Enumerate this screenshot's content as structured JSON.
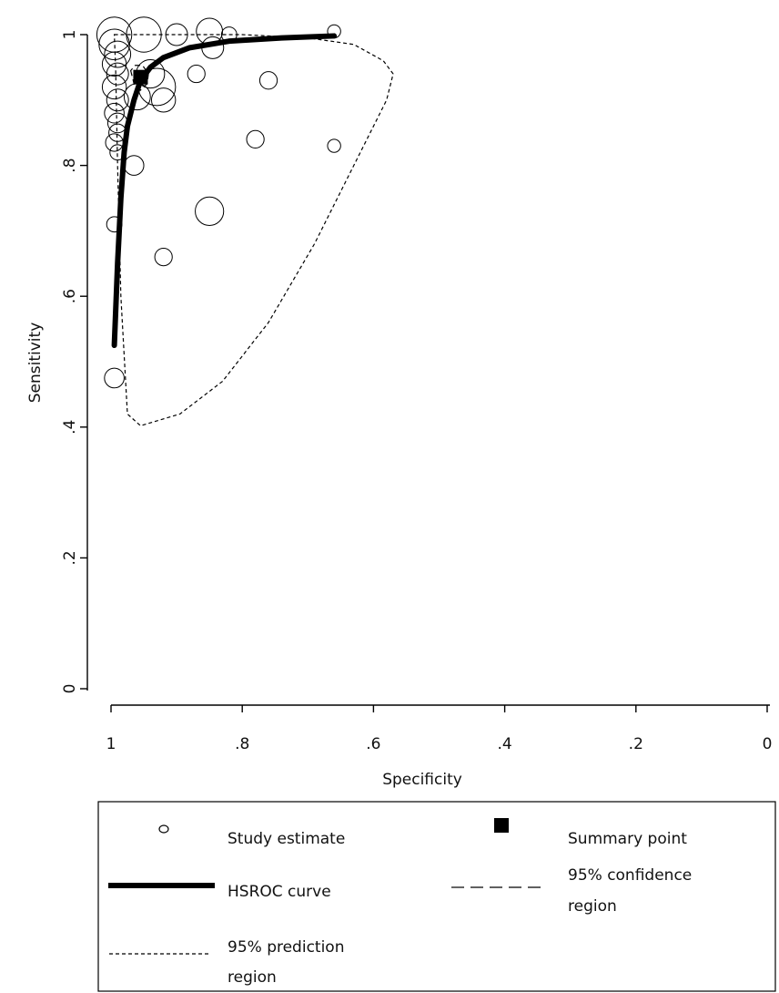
{
  "chart_data": {
    "type": "scatter",
    "title": "",
    "xlabel": "Specificity",
    "ylabel": "Sensitivity",
    "xlim": [
      1,
      0
    ],
    "ylim": [
      0,
      1
    ],
    "x_reversed": true,
    "x_ticks": [
      1,
      0.8,
      0.6,
      0.4,
      0.2,
      0
    ],
    "x_tick_labels": [
      "1",
      ".8",
      ".6",
      ".4",
      ".2",
      "0"
    ],
    "y_ticks": [
      0,
      0.2,
      0.4,
      0.6,
      0.8,
      1
    ],
    "y_tick_labels": [
      "0",
      ".2",
      ".4",
      ".6",
      ".8",
      "1"
    ],
    "grid": false,
    "legend_placement": "bottom",
    "series": [
      {
        "name": "Study estimate",
        "kind": "scatter",
        "points": [
          {
            "spec": 0.995,
            "sens": 1.0,
            "size": 1.6
          },
          {
            "spec": 0.995,
            "sens": 0.985,
            "size": 1.4
          },
          {
            "spec": 0.99,
            "sens": 0.97,
            "size": 1.2
          },
          {
            "spec": 0.995,
            "sens": 0.955,
            "size": 1.1
          },
          {
            "spec": 0.99,
            "sens": 0.94,
            "size": 1.0
          },
          {
            "spec": 0.995,
            "sens": 0.92,
            "size": 1.1
          },
          {
            "spec": 0.99,
            "sens": 0.9,
            "size": 1.0
          },
          {
            "spec": 0.995,
            "sens": 0.88,
            "size": 0.9
          },
          {
            "spec": 0.99,
            "sens": 0.865,
            "size": 0.9
          },
          {
            "spec": 0.99,
            "sens": 0.85,
            "size": 0.8
          },
          {
            "spec": 0.995,
            "sens": 0.835,
            "size": 0.8
          },
          {
            "spec": 0.99,
            "sens": 0.82,
            "size": 0.7
          },
          {
            "spec": 0.995,
            "sens": 0.71,
            "size": 0.7
          },
          {
            "spec": 0.995,
            "sens": 0.475,
            "size": 0.9
          },
          {
            "spec": 0.95,
            "sens": 1.0,
            "size": 1.6
          },
          {
            "spec": 0.9,
            "sens": 1.0,
            "size": 1.0
          },
          {
            "spec": 0.85,
            "sens": 1.005,
            "size": 1.2
          },
          {
            "spec": 0.82,
            "sens": 1.0,
            "size": 0.7
          },
          {
            "spec": 0.66,
            "sens": 1.005,
            "size": 0.6
          },
          {
            "spec": 0.845,
            "sens": 0.98,
            "size": 1.0
          },
          {
            "spec": 0.94,
            "sens": 0.94,
            "size": 1.3
          },
          {
            "spec": 0.93,
            "sens": 0.92,
            "size": 1.7
          },
          {
            "spec": 0.96,
            "sens": 0.905,
            "size": 1.2
          },
          {
            "spec": 0.92,
            "sens": 0.9,
            "size": 1.1
          },
          {
            "spec": 0.87,
            "sens": 0.94,
            "size": 0.8
          },
          {
            "spec": 0.76,
            "sens": 0.93,
            "size": 0.8
          },
          {
            "spec": 0.78,
            "sens": 0.84,
            "size": 0.8
          },
          {
            "spec": 0.66,
            "sens": 0.83,
            "size": 0.6
          },
          {
            "spec": 0.965,
            "sens": 0.8,
            "size": 0.9
          },
          {
            "spec": 0.85,
            "sens": 0.73,
            "size": 1.3
          },
          {
            "spec": 0.92,
            "sens": 0.66,
            "size": 0.8
          }
        ]
      },
      {
        "name": "Summary point",
        "kind": "point",
        "spec": 0.955,
        "sens": 0.935
      },
      {
        "name": "HSROC curve",
        "kind": "line",
        "points": [
          {
            "spec": 0.995,
            "sens": 0.525
          },
          {
            "spec": 0.99,
            "sens": 0.65
          },
          {
            "spec": 0.985,
            "sens": 0.75
          },
          {
            "spec": 0.98,
            "sens": 0.82
          },
          {
            "spec": 0.975,
            "sens": 0.86
          },
          {
            "spec": 0.965,
            "sens": 0.9
          },
          {
            "spec": 0.955,
            "sens": 0.93
          },
          {
            "spec": 0.94,
            "sens": 0.95
          },
          {
            "spec": 0.92,
            "sens": 0.965
          },
          {
            "spec": 0.88,
            "sens": 0.98
          },
          {
            "spec": 0.82,
            "sens": 0.99
          },
          {
            "spec": 0.74,
            "sens": 0.995
          },
          {
            "spec": 0.66,
            "sens": 0.998
          }
        ]
      },
      {
        "name": "95% confidence region",
        "kind": "region",
        "points": [
          {
            "spec": 0.97,
            "sens": 0.945
          },
          {
            "spec": 0.965,
            "sens": 0.925
          },
          {
            "spec": 0.955,
            "sens": 0.915
          },
          {
            "spec": 0.945,
            "sens": 0.925
          },
          {
            "spec": 0.943,
            "sens": 0.94
          },
          {
            "spec": 0.952,
            "sens": 0.953
          },
          {
            "spec": 0.963,
            "sens": 0.953
          }
        ]
      },
      {
        "name": "95% prediction region",
        "kind": "region",
        "points": [
          {
            "spec": 0.995,
            "sens": 1.0
          },
          {
            "spec": 0.9,
            "sens": 1.0
          },
          {
            "spec": 0.8,
            "sens": 1.0
          },
          {
            "spec": 0.7,
            "sens": 0.995
          },
          {
            "spec": 0.63,
            "sens": 0.985
          },
          {
            "spec": 0.585,
            "sens": 0.96
          },
          {
            "spec": 0.57,
            "sens": 0.94
          },
          {
            "spec": 0.58,
            "sens": 0.9
          },
          {
            "spec": 0.62,
            "sens": 0.82
          },
          {
            "spec": 0.69,
            "sens": 0.68
          },
          {
            "spec": 0.76,
            "sens": 0.56
          },
          {
            "spec": 0.83,
            "sens": 0.47
          },
          {
            "spec": 0.895,
            "sens": 0.42
          },
          {
            "spec": 0.955,
            "sens": 0.402
          },
          {
            "spec": 0.975,
            "sens": 0.42
          },
          {
            "spec": 0.985,
            "sens": 0.6
          },
          {
            "spec": 0.99,
            "sens": 0.8
          },
          {
            "spec": 0.993,
            "sens": 0.95
          }
        ]
      }
    ]
  },
  "legend": {
    "study_estimate": "Study estimate",
    "summary_point": "Summary point",
    "hsroc_curve": "HSROC curve",
    "confidence_line1": "95% confidence",
    "confidence_line2": "region",
    "prediction_line1": "95% prediction",
    "prediction_line2": "region"
  }
}
